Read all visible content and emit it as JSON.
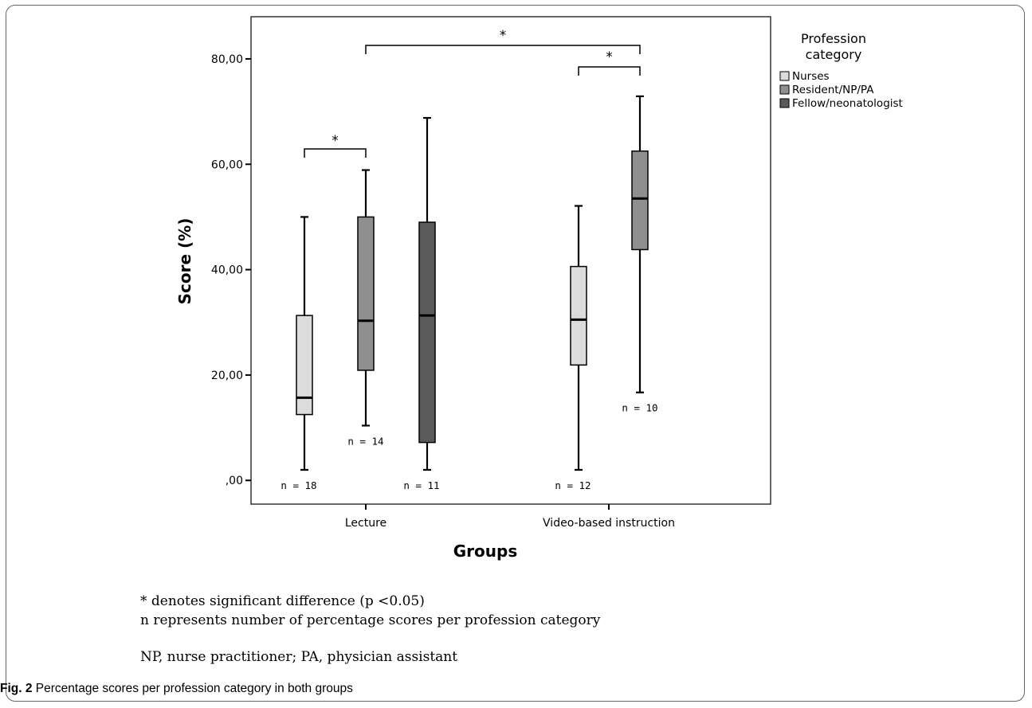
{
  "chart_data": {
    "type": "boxplot",
    "xlabel": "Groups",
    "ylabel": "Score (%)",
    "ylim": [
      -4.5,
      88
    ],
    "yticks": [
      0,
      20,
      40,
      60,
      80
    ],
    "ytick_labels": [
      ",00",
      "20,00",
      "40,00",
      "60,00",
      "80,00"
    ],
    "categories": [
      "Lecture",
      "Video-based instruction"
    ],
    "legend": {
      "title": "Profession category",
      "placement": "top-right",
      "entries": [
        {
          "name": "Nurses",
          "color": "#dcdcdc"
        },
        {
          "name": "Resident/NP/PA",
          "color": "#8f8f8f"
        },
        {
          "name": "Fellow/neonatologist",
          "color": "#5a5a5a"
        }
      ]
    },
    "boxes": [
      {
        "group": "Lecture",
        "series": "Nurses",
        "min": 2,
        "q1": 12.5,
        "median": 15.7,
        "q3": 31.3,
        "max": 50,
        "n_label": "n = 18"
      },
      {
        "group": "Lecture",
        "series": "Resident/NP/PA",
        "min": 10.4,
        "q1": 20.9,
        "median": 30.3,
        "q3": 50,
        "max": 58.9,
        "n_label": "n = 14"
      },
      {
        "group": "Lecture",
        "series": "Fellow/neonatologist",
        "min": 2,
        "q1": 7.2,
        "median": 31.3,
        "q3": 49,
        "max": 68.8,
        "n_label": "n = 11"
      },
      {
        "group": "Video-based instruction",
        "series": "Nurses",
        "min": 2,
        "q1": 21.9,
        "median": 30.5,
        "q3": 40.6,
        "max": 52.1,
        "n_label": "n = 12"
      },
      {
        "group": "Video-based instruction",
        "series": "Resident/NP/PA",
        "min": 16.7,
        "q1": 43.8,
        "median": 53.5,
        "q3": 62.5,
        "max": 72.9,
        "n_label": "n = 10"
      }
    ],
    "significance": [
      {
        "from": "Lecture|Nurses",
        "to": "Lecture|Resident/NP/PA",
        "label": "*"
      },
      {
        "from": "Lecture|Resident/NP/PA",
        "to": "Video-based instruction|Resident/NP/PA",
        "label": "*"
      },
      {
        "from": "Video-based instruction|Nurses",
        "to": "Video-based instruction|Resident/NP/PA",
        "label": "*"
      }
    ]
  },
  "notes": {
    "significance_note": "* denotes significant difference (p <0.05)",
    "n_note": "n represents number of percentage scores per profession category",
    "abbreviations": "NP, nurse practitioner; PA, physician assistant"
  },
  "caption": {
    "label": "Fig. 2",
    "text": " Percentage scores per profession category in both groups"
  }
}
